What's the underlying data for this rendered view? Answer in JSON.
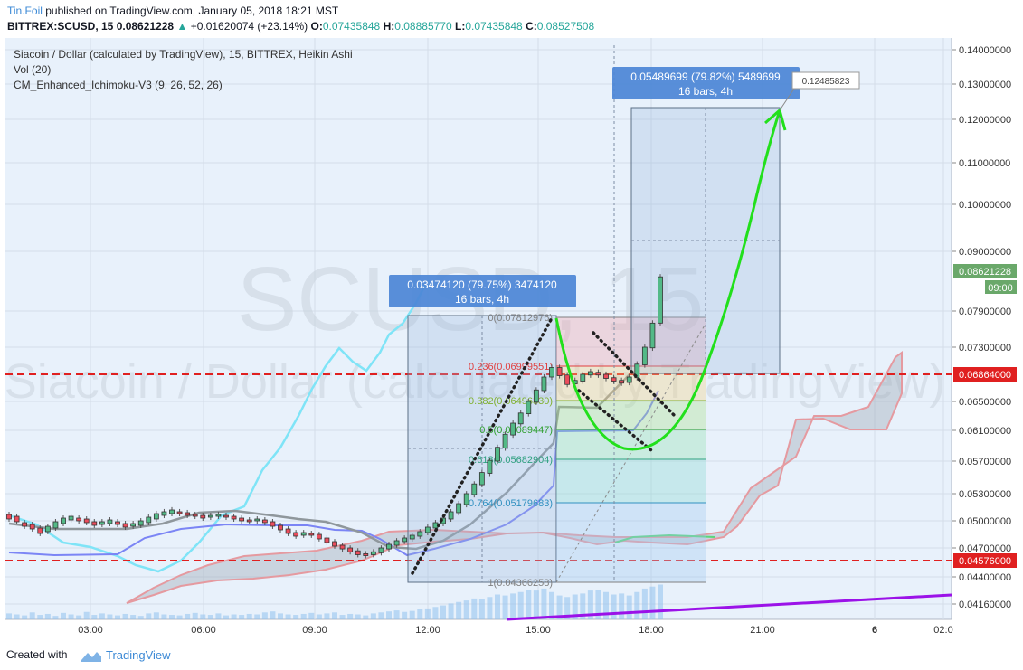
{
  "header": {
    "author": "Tin.Foil",
    "published": "published on TradingView.com, January 05, 2018 18:21 MST",
    "symbol": "BITTREX:SCUSD, 15",
    "last": "0.08621228",
    "change": "+0.01620074 (+23.14%)",
    "o_label": "O:",
    "o_value": "0.07435848",
    "h_label": "H:",
    "h_value": "0.08885770",
    "l_label": "L:",
    "l_value": "0.07435848",
    "c_label": "C:",
    "c_value": "0.08527508"
  },
  "legend": {
    "series": "Siacoin / Dollar (calculated by TradingView), 15, BITTREX, Heikin Ashi",
    "volume": "Vol (20)",
    "ichimoku": "CM_Enhanced_Ichimoku-V3 (9, 26, 52, 26)"
  },
  "watermark": {
    "symbol": "SCUSD, 15",
    "name": "Siacoin / Dollar (calculated by TradingView)"
  },
  "chart_data": {
    "type": "candlestick",
    "chart_style": "Heikin Ashi",
    "x_ticks": [
      "03:00",
      "06:00",
      "09:00",
      "12:00",
      "15:00",
      "18:00",
      "21:00",
      "6",
      "02:0"
    ],
    "y_ticks": [
      0.14,
      0.13,
      0.12,
      0.11,
      0.1,
      0.09,
      0.079,
      0.073,
      0.065,
      0.061,
      0.057,
      0.053,
      0.05,
      0.047,
      0.044,
      0.0416
    ],
    "y_tick_labels": [
      "0.14000000",
      "0.13000000",
      "0.12000000",
      "0.11000000",
      "0.10000000",
      "0.09000000",
      "0.07900000",
      "0.07300000",
      "0.06500000",
      "0.06100000",
      "0.05700000",
      "0.05300000",
      "0.05000000",
      "0.04700000",
      "0.04400000",
      "0.04160000"
    ],
    "price_labels": {
      "last_price": "0.08621228",
      "countdown": "09:00",
      "hline_upper": "0.06864000",
      "hline_lower": "0.04576000"
    },
    "horizontal_lines": [
      0.06864,
      0.04576
    ],
    "fibonacci": [
      {
        "label": "0(0.07812976)",
        "level": 0.07812976,
        "color": "#808080"
      },
      {
        "label": "0.236(0.06999551)",
        "level": 0.06999551,
        "color": "#e04040"
      },
      {
        "label": "0.382(0.06496330)",
        "level": 0.0649633,
        "color": "#80b030"
      },
      {
        "label": "0.5(0.06089447)",
        "level": 0.06089447,
        "color": "#30a030"
      },
      {
        "label": "0.618(0.05682904)",
        "level": 0.05682904,
        "color": "#30a080"
      },
      {
        "label": "0.764(0.05179683)",
        "level": 0.05179683,
        "color": "#3090c0"
      },
      {
        "label": "1(0.04366258)",
        "level": 0.04366258,
        "color": "#808080"
      }
    ],
    "measure_boxes": [
      {
        "line1": "0.03474120 (79.75%) 3474120",
        "line2": "16 bars, 4h"
      },
      {
        "line1": "0.05489699 (79.82%) 5489699",
        "line2": "16 bars, 4h"
      }
    ],
    "target_callout": "0.12485823",
    "candles": [
      [
        0.0507,
        0.0502
      ],
      [
        0.0505,
        0.0499
      ],
      [
        0.0498,
        0.0494
      ],
      [
        0.0496,
        0.0491
      ],
      [
        0.0492,
        0.0486
      ],
      [
        0.0488,
        0.0494
      ],
      [
        0.0492,
        0.0499
      ],
      [
        0.0497,
        0.0503
      ],
      [
        0.0501,
        0.0505
      ],
      [
        0.0503,
        0.05
      ],
      [
        0.0502,
        0.0498
      ],
      [
        0.0499,
        0.0495
      ],
      [
        0.0496,
        0.0499
      ],
      [
        0.0497,
        0.0501
      ],
      [
        0.0499,
        0.0496
      ],
      [
        0.0497,
        0.0493
      ],
      [
        0.0494,
        0.0497
      ],
      [
        0.0495,
        0.05
      ],
      [
        0.0498,
        0.0504
      ],
      [
        0.0502,
        0.0508
      ],
      [
        0.0506,
        0.051
      ],
      [
        0.0508,
        0.0512
      ],
      [
        0.051,
        0.0508
      ],
      [
        0.0509,
        0.0506
      ],
      [
        0.0507,
        0.0505
      ],
      [
        0.0506,
        0.0503
      ],
      [
        0.0504,
        0.0506
      ],
      [
        0.0505,
        0.0507
      ],
      [
        0.0506,
        0.0504
      ],
      [
        0.0505,
        0.0502
      ],
      [
        0.0503,
        0.05
      ],
      [
        0.0501,
        0.0499
      ],
      [
        0.05,
        0.0502
      ],
      [
        0.0501,
        0.0498
      ],
      [
        0.0499,
        0.0494
      ],
      [
        0.0495,
        0.049
      ],
      [
        0.0491,
        0.0486
      ],
      [
        0.0487,
        0.0483
      ],
      [
        0.0484,
        0.0487
      ],
      [
        0.0486,
        0.0484
      ],
      [
        0.0485,
        0.048
      ],
      [
        0.0481,
        0.0476
      ],
      [
        0.0477,
        0.0472
      ],
      [
        0.0473,
        0.0469
      ],
      [
        0.047,
        0.0466
      ],
      [
        0.0467,
        0.0463
      ],
      [
        0.0464,
        0.0462
      ],
      [
        0.0463,
        0.0466
      ],
      [
        0.0465,
        0.047
      ],
      [
        0.0469,
        0.0474
      ],
      [
        0.0473,
        0.0478
      ],
      [
        0.0477,
        0.0481
      ],
      [
        0.048,
        0.0484
      ],
      [
        0.0483,
        0.0488
      ],
      [
        0.0487,
        0.0493
      ],
      [
        0.0492,
        0.0498
      ],
      [
        0.0497,
        0.0503
      ],
      [
        0.0502,
        0.051
      ],
      [
        0.0509,
        0.0519
      ],
      [
        0.0518,
        0.053
      ],
      [
        0.0529,
        0.0542
      ],
      [
        0.0541,
        0.0556
      ],
      [
        0.0555,
        0.0571
      ],
      [
        0.057,
        0.0588
      ],
      [
        0.0587,
        0.0605
      ],
      [
        0.0604,
        0.062
      ],
      [
        0.0619,
        0.0634
      ],
      [
        0.0633,
        0.065
      ],
      [
        0.0649,
        0.0667
      ],
      [
        0.0666,
        0.0686
      ],
      [
        0.0686,
        0.07
      ],
      [
        0.07,
        0.0688
      ],
      [
        0.0689,
        0.0675
      ],
      [
        0.0676,
        0.0681
      ],
      [
        0.068,
        0.069
      ],
      [
        0.0689,
        0.0694
      ],
      [
        0.0693,
        0.0689
      ],
      [
        0.069,
        0.0684
      ],
      [
        0.0685,
        0.068
      ],
      [
        0.0681,
        0.0677
      ],
      [
        0.0678,
        0.0686
      ],
      [
        0.0685,
        0.0705
      ],
      [
        0.0704,
        0.073
      ],
      [
        0.0729,
        0.077
      ],
      [
        0.077,
        0.0853
      ]
    ]
  }
}
